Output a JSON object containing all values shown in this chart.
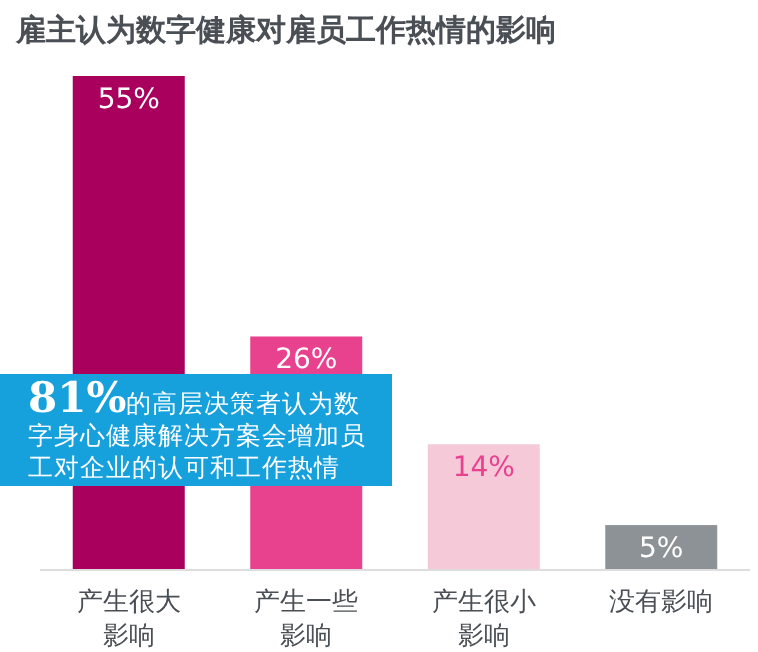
{
  "chart_data": {
    "type": "bar",
    "title": "雇主认为数字健康对雇员工作热情的影响",
    "categories": [
      "产生很大影响",
      "产生一些影响",
      "产生很小影响",
      "没有影响"
    ],
    "values": [
      55,
      26,
      14,
      5
    ],
    "colors": [
      "#a8005c",
      "#e8428f",
      "#f6c9d9",
      "#8d9297"
    ],
    "value_labels": [
      "55%",
      "26%",
      "14%",
      "5%"
    ],
    "annotations": [
      "81%的高层决策者认为数字身心健康解决方案会增加员工对企业的认可和工作热情"
    ]
  }
}
